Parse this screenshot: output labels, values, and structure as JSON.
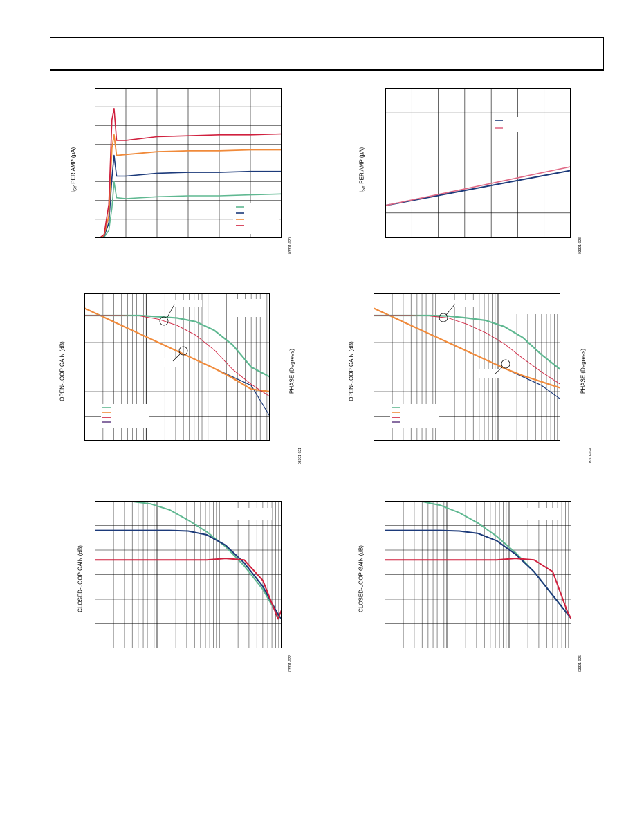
{
  "header": {},
  "colors": {
    "green": "#5fb891",
    "navy": "#1c3a7a",
    "orange": "#f08a3a",
    "red": "#d0203e",
    "purple": "#6a4a8a",
    "pink": "#e06a86",
    "grid": "#000000"
  },
  "figures": {
    "isy_time": {
      "ylabel_pre": "I",
      "ylabel_sub": "SY",
      "ylabel_post": " PER AMP (μA)",
      "fig_id": "03301-020"
    },
    "isy_vs": {
      "ylabel_pre": "I",
      "ylabel_sub": "SY",
      "ylabel_post": " PER AMP (μA)",
      "fig_id": "03301-023"
    },
    "olg_left": {
      "ylabel": "OPEN-LOOP GAIN (dB)",
      "y2label": "PHASE (Degrees)",
      "fig_id": "03301-021"
    },
    "olg_right": {
      "ylabel": "OPEN-LOOP GAIN (dB)",
      "y2label": "PHASE (Degrees)",
      "fig_id": "03301-024"
    },
    "clg_left": {
      "ylabel": "CLOSED-LOOP GAIN (dB)",
      "fig_id": "03301-022"
    },
    "clg_right": {
      "ylabel": "CLOSED-LOOP GAIN (dB)",
      "fig_id": "03301-025"
    }
  },
  "chart_data": [
    {
      "type": "line",
      "x": [
        0,
        0.15,
        0.3,
        0.45,
        0.55,
        0.62,
        0.7,
        1,
        2,
        3,
        4,
        5,
        6
      ],
      "xlim": [
        0,
        6
      ],
      "ylim": [
        0,
        8
      ],
      "grid": true,
      "legend": "bottom-right",
      "series": [
        {
          "color": "green",
          "values": [
            0,
            0,
            0.05,
            0.4,
            1.6,
            3.0,
            2.15,
            2.1,
            2.2,
            2.25,
            2.25,
            2.3,
            2.35
          ]
        },
        {
          "color": "navy",
          "values": [
            0,
            0,
            0.1,
            0.8,
            3.2,
            4.4,
            3.3,
            3.3,
            3.45,
            3.5,
            3.5,
            3.55,
            3.55
          ]
        },
        {
          "color": "orange",
          "values": [
            0,
            0,
            0.15,
            1.2,
            4.8,
            5.5,
            4.4,
            4.45,
            4.6,
            4.65,
            4.65,
            4.7,
            4.7
          ]
        },
        {
          "color": "red",
          "values": [
            0,
            0,
            0.2,
            1.8,
            6.3,
            6.9,
            5.2,
            5.2,
            5.4,
            5.45,
            5.5,
            5.5,
            5.55
          ]
        }
      ]
    },
    {
      "type": "line",
      "x": [
        0,
        7
      ],
      "xlim": [
        0,
        7
      ],
      "ylim": [
        0,
        6
      ],
      "grid": true,
      "legend": "top-right",
      "series": [
        {
          "color": "navy",
          "values": [
            1.3,
            2.7
          ]
        },
        {
          "color": "pink",
          "values": [
            1.3,
            2.85
          ]
        }
      ]
    },
    {
      "type": "line",
      "xscale": "log",
      "x": [
        1,
        2,
        4,
        8,
        16,
        32,
        64,
        128,
        256,
        512,
        1024
      ],
      "xlim": [
        1,
        1024
      ],
      "ylim": [
        0,
        6
      ],
      "grid": true,
      "legend": "bottom-left",
      "series": [
        {
          "color": "navy",
          "values": [
            5.4,
            5.05,
            4.7,
            4.35,
            4.0,
            3.65,
            3.3,
            2.95,
            2.6,
            2.25,
            1.0
          ]
        },
        {
          "color": "orange",
          "values": [
            5.4,
            5.05,
            4.7,
            4.35,
            4.0,
            3.65,
            3.3,
            2.95,
            2.55,
            2.1,
            2.0
          ]
        },
        {
          "color": "green",
          "values": [
            5.1,
            5.1,
            5.1,
            5.1,
            5.05,
            5.0,
            4.85,
            4.5,
            3.9,
            3.0,
            2.6
          ]
        },
        {
          "color": "red",
          "values": [
            5.1,
            5.1,
            5.1,
            5.08,
            4.95,
            4.7,
            4.3,
            3.7,
            2.9,
            2.3,
            1.8
          ]
        }
      ]
    },
    {
      "type": "line",
      "xscale": "log",
      "x": [
        1,
        2,
        4,
        8,
        16,
        32,
        64,
        128,
        256,
        512,
        1024
      ],
      "xlim": [
        1,
        1024
      ],
      "ylim": [
        0,
        6
      ],
      "grid": true,
      "legend": "bottom-left",
      "series": [
        {
          "color": "navy",
          "values": [
            5.4,
            5.05,
            4.7,
            4.35,
            4.0,
            3.65,
            3.3,
            2.95,
            2.6,
            2.25,
            1.7
          ]
        },
        {
          "color": "orange",
          "values": [
            5.4,
            5.05,
            4.7,
            4.35,
            4.0,
            3.65,
            3.3,
            2.95,
            2.65,
            2.4,
            2.15
          ]
        },
        {
          "color": "green",
          "values": [
            5.1,
            5.1,
            5.1,
            5.1,
            5.08,
            5.0,
            4.9,
            4.65,
            4.2,
            3.5,
            2.9
          ]
        },
        {
          "color": "red",
          "values": [
            5.1,
            5.1,
            5.1,
            5.08,
            5.0,
            4.75,
            4.4,
            3.95,
            3.35,
            2.8,
            2.3
          ]
        }
      ]
    },
    {
      "type": "line",
      "xscale": "log",
      "x": [
        1,
        2,
        4,
        8,
        16,
        32,
        64,
        128,
        256,
        512,
        900,
        1024
      ],
      "xlim": [
        1,
        1024
      ],
      "ylim": [
        0,
        5
      ],
      "grid": true,
      "series": [
        {
          "color": "green",
          "values": [
            5.0,
            5.0,
            4.98,
            4.9,
            4.7,
            4.35,
            3.95,
            3.45,
            2.8,
            2.0,
            1.1,
            1.0
          ]
        },
        {
          "color": "navy",
          "values": [
            4.0,
            4.0,
            4.0,
            4.0,
            4.0,
            3.98,
            3.85,
            3.5,
            2.9,
            2.1,
            1.15,
            1.0
          ]
        },
        {
          "color": "red",
          "values": [
            3.0,
            3.0,
            3.0,
            3.0,
            3.0,
            3.0,
            3.0,
            3.05,
            3.0,
            2.3,
            1.0,
            1.3
          ]
        }
      ]
    },
    {
      "type": "line",
      "xscale": "log",
      "x": [
        1,
        2,
        4,
        8,
        16,
        32,
        64,
        128,
        256,
        512,
        900,
        1024
      ],
      "xlim": [
        1,
        1024
      ],
      "ylim": [
        0,
        5
      ],
      "grid": true,
      "series": [
        {
          "color": "green",
          "values": [
            5.0,
            5.0,
            4.98,
            4.85,
            4.6,
            4.25,
            3.8,
            3.25,
            2.6,
            1.8,
            1.15,
            1.0
          ]
        },
        {
          "color": "navy",
          "values": [
            4.0,
            4.0,
            4.0,
            4.0,
            3.98,
            3.9,
            3.65,
            3.2,
            2.6,
            1.8,
            1.15,
            1.0
          ]
        },
        {
          "color": "red",
          "values": [
            3.0,
            3.0,
            3.0,
            3.0,
            3.0,
            3.0,
            3.0,
            3.05,
            3.0,
            2.6,
            1.2,
            1.0
          ]
        }
      ]
    }
  ]
}
